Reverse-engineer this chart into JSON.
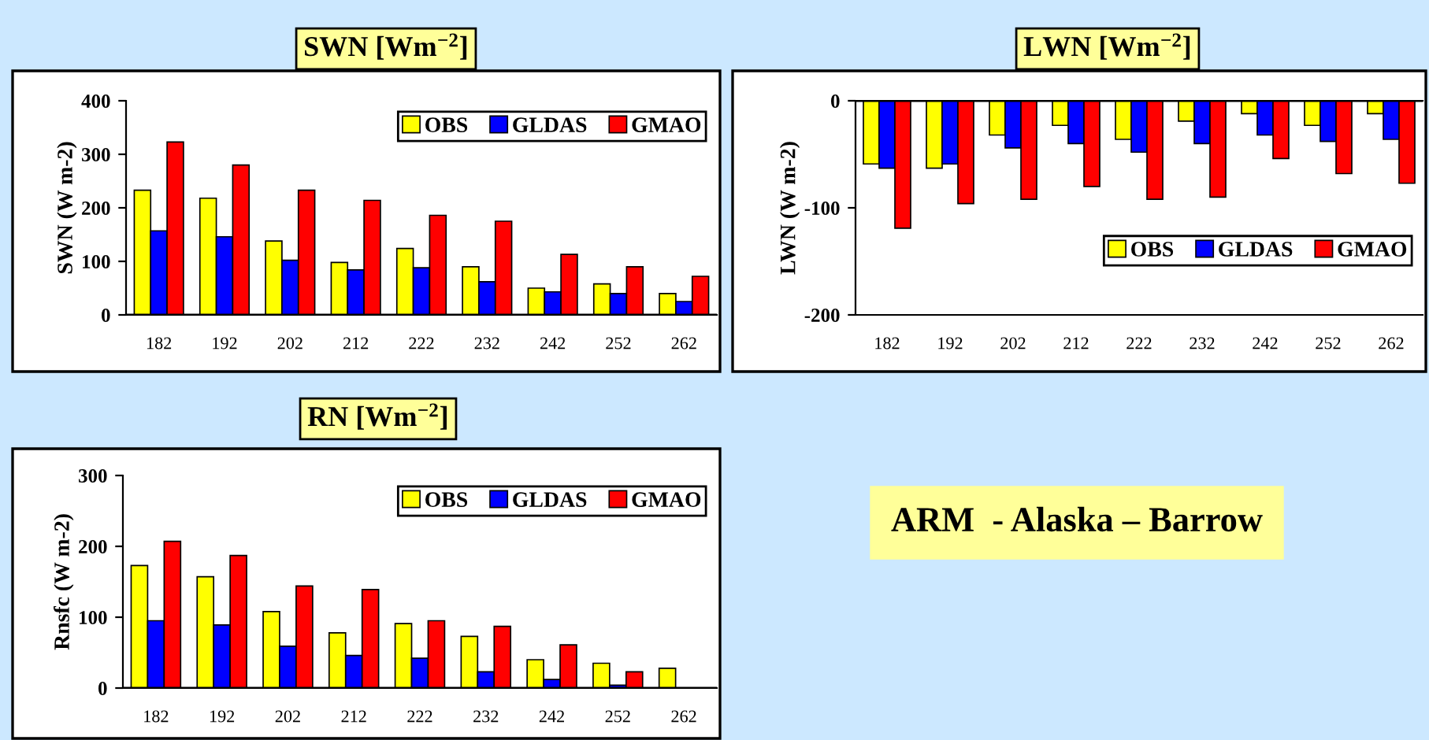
{
  "chart_data": [
    {
      "type": "bar",
      "title": "SWN [Wm$^{−2}$]",
      "ylabel": "SWN (W m-2)",
      "categories": [
        "182",
        "192",
        "202",
        "212",
        "222",
        "232",
        "242",
        "252",
        "262"
      ],
      "ylim": [
        0,
        400
      ],
      "yticks": [
        0,
        100,
        200,
        300,
        400
      ],
      "grid": false,
      "legend": "top right",
      "series": [
        {
          "name": "OBS",
          "color": "#ffff00",
          "values": [
            233,
            218,
            138,
            98,
            124,
            90,
            50,
            58,
            40
          ]
        },
        {
          "name": "GLDAS",
          "color": "#0000ff",
          "values": [
            157,
            146,
            102,
            84,
            88,
            62,
            43,
            40,
            25
          ]
        },
        {
          "name": "GMAO",
          "color": "#ff0000",
          "values": [
            323,
            280,
            233,
            214,
            186,
            175,
            113,
            90,
            72
          ]
        }
      ]
    },
    {
      "type": "bar",
      "title": "LWN [Wm$^{−2}$]",
      "ylabel": "LWN (W m-2)",
      "categories": [
        "182",
        "192",
        "202",
        "212",
        "222",
        "232",
        "242",
        "252",
        "262"
      ],
      "ylim": [
        -200,
        0
      ],
      "yticks": [
        {
          "value": -200,
          "label": "-200"
        },
        {
          "value": -100,
          "label": "-100"
        },
        0
      ],
      "grid": false,
      "legend": "right",
      "series": [
        {
          "name": "OBS",
          "color": "#ffff00",
          "values": [
            -59,
            -63,
            -32,
            -23,
            -36,
            -19,
            -12,
            -23,
            -12
          ]
        },
        {
          "name": "GLDAS",
          "color": "#0000ff",
          "values": [
            -63,
            -59,
            -44,
            -40,
            -48,
            -40,
            -32,
            -38,
            -36
          ]
        },
        {
          "name": "GMAO",
          "color": "#ff0000",
          "values": [
            -119,
            -96,
            -92,
            -80,
            -92,
            -90,
            -54,
            -68,
            -77
          ]
        }
      ]
    },
    {
      "type": "bar",
      "title": "RN [Wm$^{−2}$]",
      "ylabel": "Rnsfc (W m-2)",
      "categories": [
        "182",
        "192",
        "202",
        "212",
        "222",
        "232",
        "242",
        "252",
        "262"
      ],
      "ylim": [
        0,
        300
      ],
      "yticks": [
        0,
        100,
        200,
        300
      ],
      "grid": false,
      "legend": "top right",
      "series": [
        {
          "name": "OBS",
          "color": "#ffff00",
          "values": [
            173,
            157,
            108,
            78,
            91,
            73,
            40,
            35,
            28
          ]
        },
        {
          "name": "GLDAS",
          "color": "#0000ff",
          "values": [
            95,
            89,
            59,
            46,
            42,
            23,
            12,
            4,
            null
          ]
        },
        {
          "name": "GMAO",
          "color": "#ff0000",
          "values": [
            207,
            187,
            144,
            139,
            95,
            87,
            61,
            23,
            null
          ]
        }
      ]
    },
    {
      "type": "other",
      "title": "ARM  - Alaska – Barrow"
    }
  ]
}
